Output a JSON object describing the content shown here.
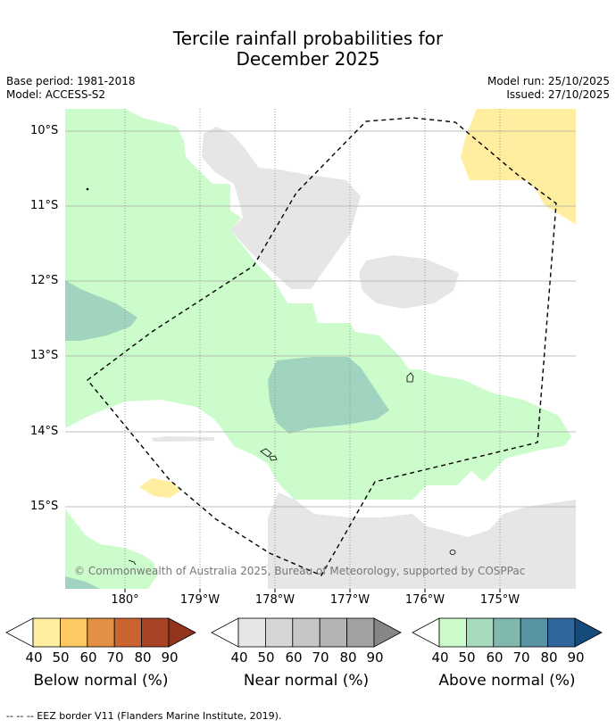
{
  "title": {
    "line1": "Tercile rainfall probabilities for",
    "line2": "December 2025"
  },
  "meta": {
    "base_period": "Base period: 1981-2018",
    "model": "Model: ACCESS-S2",
    "model_run": "Model run: 25/10/2025",
    "issued": "Issued: 27/10/2025"
  },
  "map": {
    "lat_labels": [
      "10°S",
      "11°S",
      "12°S",
      "13°S",
      "14°S",
      "15°S"
    ],
    "lon_labels": [
      "180°",
      "179°W",
      "178°W",
      "177°W",
      "176°W",
      "175°W"
    ],
    "copyright": "© Commonwealth of Australia 2025, Bureau of Meteorology, supported by COSPPac",
    "colors": {
      "above_50": "#ccfccc",
      "above_60": "#a0d4be",
      "near_50": "#e6e6e6",
      "below_50": "#ffeda0",
      "grid": "#aaaaaa",
      "eez": "#000000"
    }
  },
  "colorbars": [
    {
      "name": "below",
      "label": "Below normal (%)",
      "ticks": [
        "40",
        "50",
        "60",
        "70",
        "80",
        "90"
      ],
      "colors": [
        "#ffffff",
        "#ffeda0",
        "#fec863",
        "#e19044",
        "#cb6431",
        "#a84425",
        "#93341f"
      ]
    },
    {
      "name": "near",
      "label": "Near normal (%)",
      "ticks": [
        "40",
        "50",
        "60",
        "70",
        "80",
        "90"
      ],
      "colors": [
        "#ffffff",
        "#e6e6e6",
        "#d6d6d6",
        "#c6c6c6",
        "#b4b4b4",
        "#a2a2a2",
        "#868686"
      ]
    },
    {
      "name": "above",
      "label": "Above normal (%)",
      "ticks": [
        "40",
        "50",
        "60",
        "70",
        "80",
        "90"
      ],
      "colors": [
        "#ffffff",
        "#ccfccc",
        "#a6dcbc",
        "#80b8b0",
        "#5894a4",
        "#30669c",
        "#144a7c"
      ]
    }
  ],
  "footer": "--  --  -- EEZ border V11 (Flanders Marine Institute, 2019)."
}
